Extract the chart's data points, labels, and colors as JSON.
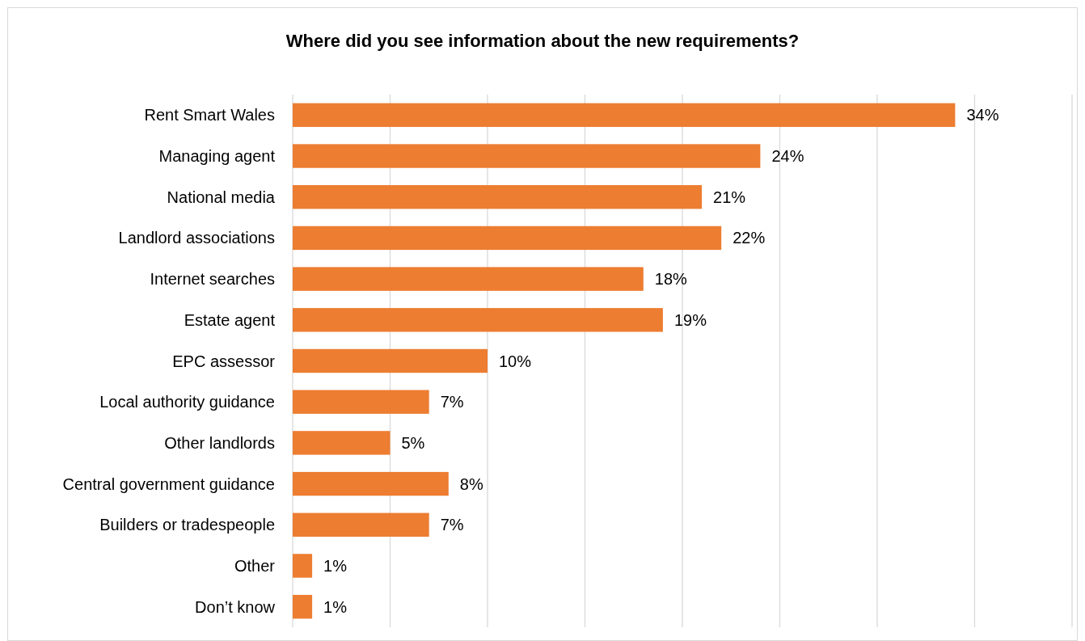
{
  "chart_data": {
    "type": "bar",
    "orientation": "horizontal",
    "title": "Where did you see information about the new requirements?",
    "categories": [
      "Rent Smart Wales",
      "Managing agent",
      "National media",
      "Landlord associations",
      "Internet searches",
      "Estate agent",
      "EPC assessor",
      "Local authority guidance",
      "Other landlords",
      "Central government guidance",
      "Builders or tradespeople",
      "Other",
      "Don’t know"
    ],
    "values": [
      34,
      24,
      21,
      22,
      18,
      19,
      10,
      7,
      5,
      8,
      7,
      1,
      1
    ],
    "value_labels": [
      "34%",
      "24%",
      "21%",
      "22%",
      "18%",
      "19%",
      "10%",
      "7%",
      "5%",
      "8%",
      "7%",
      "1%",
      "1%"
    ],
    "color": "#ed7d31",
    "xlim": [
      0,
      40
    ],
    "xticks": [
      {
        "value": 0,
        "label": null
      },
      {
        "value": 5,
        "label": null
      },
      {
        "value": 10,
        "label": null
      },
      {
        "value": 15,
        "label": null
      },
      {
        "value": 20,
        "label": null
      },
      {
        "value": 25,
        "label": null
      },
      {
        "value": 30,
        "label": null
      },
      {
        "value": 35,
        "label": null
      },
      {
        "value": 40,
        "label": null
      }
    ],
    "tick_labels": "y",
    "grid": "x"
  }
}
